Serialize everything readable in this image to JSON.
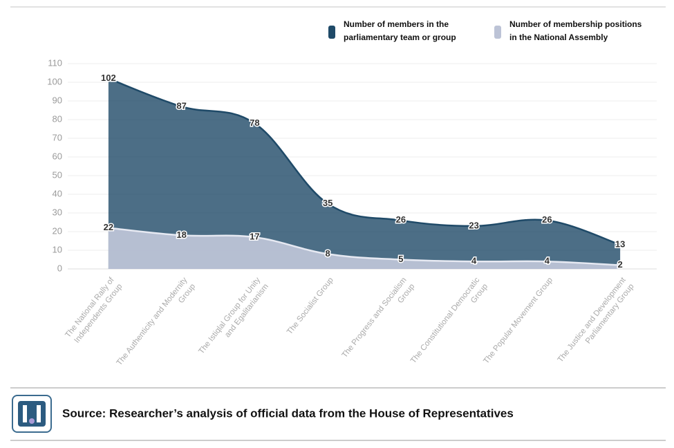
{
  "chart_data": {
    "type": "area",
    "categories": [
      "The National Rally of Independents Group",
      "The Authenticity and Modernity Group",
      "The Istiqlal Group for Unity and Egalitarianism",
      "The Socialist Group",
      "The Progress and Socialism Group",
      "The Constitutional Democratic Group",
      "The Popular Movement Group",
      "The Justice and Development Parliamentary Group"
    ],
    "series": [
      {
        "name": "Number of members in the parliamentary team or group",
        "color": "#1f4a68",
        "values": [
          102,
          87,
          78,
          35,
          26,
          23,
          26,
          13
        ]
      },
      {
        "name": "Number of membership positions in the National Assembly",
        "color": "#bcc3d6",
        "values": [
          22,
          18,
          17,
          8,
          5,
          4,
          4,
          2
        ]
      }
    ],
    "ylim": [
      0,
      110
    ],
    "yticks": [
      0,
      10,
      20,
      30,
      40,
      50,
      60,
      70,
      80,
      90,
      100,
      110
    ],
    "grid": true,
    "legend": "top-right"
  },
  "footer": {
    "source": "Source: Researcher’s analysis of official data from the House of Representatives"
  }
}
